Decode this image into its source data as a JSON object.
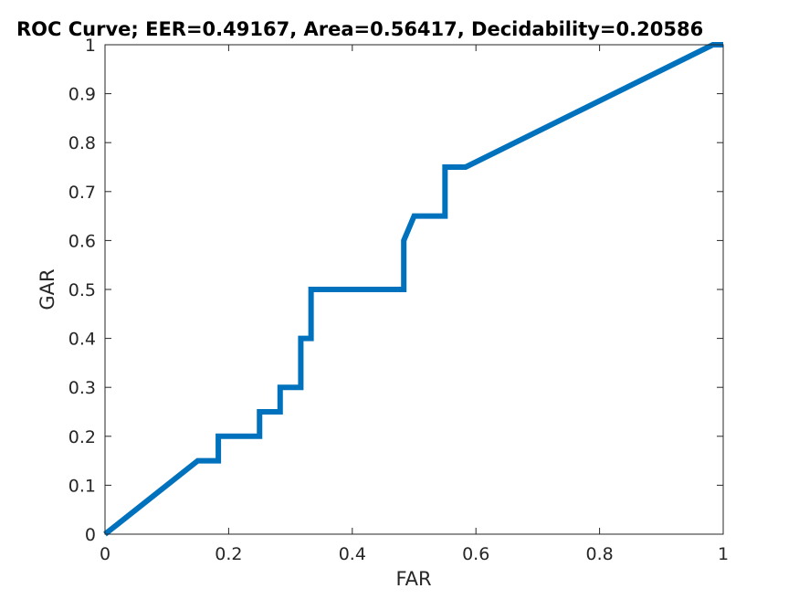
{
  "chart_data": {
    "type": "line",
    "title": "ROC Curve;   EER=0.49167,   Area=0.56417,   Decidability=0.20586",
    "xlabel": "FAR",
    "ylabel": "GAR",
    "xlim": [
      0,
      1
    ],
    "ylim": [
      0,
      1
    ],
    "grid": false,
    "x_ticks": [
      0,
      0.2,
      0.4,
      0.6,
      0.8,
      1
    ],
    "x_tick_labels": [
      "0",
      "0.2",
      "0.4",
      "0.6",
      "0.8",
      "1"
    ],
    "y_ticks": [
      0,
      0.1,
      0.2,
      0.3,
      0.4,
      0.5,
      0.6,
      0.7,
      0.8,
      0.9,
      1
    ],
    "y_tick_labels": [
      "0",
      "0.1",
      "0.2",
      "0.3",
      "0.4",
      "0.5",
      "0.6",
      "0.7",
      "0.8",
      "0.9",
      "1"
    ],
    "series": [
      {
        "color": "#0072bd",
        "x": [
          0,
          0.15,
          0.1833,
          0.1833,
          0.25,
          0.25,
          0.2833,
          0.2833,
          0.3167,
          0.3167,
          0.3333,
          0.3333,
          0.4833,
          0.4833,
          0.5,
          0.55,
          0.55,
          0.5833,
          0.9833,
          1
        ],
        "y": [
          0,
          0.15,
          0.15,
          0.2,
          0.2,
          0.25,
          0.25,
          0.3,
          0.3,
          0.4,
          0.4,
          0.5,
          0.5,
          0.6,
          0.65,
          0.65,
          0.75,
          0.75,
          1.0,
          1.0
        ]
      }
    ]
  }
}
